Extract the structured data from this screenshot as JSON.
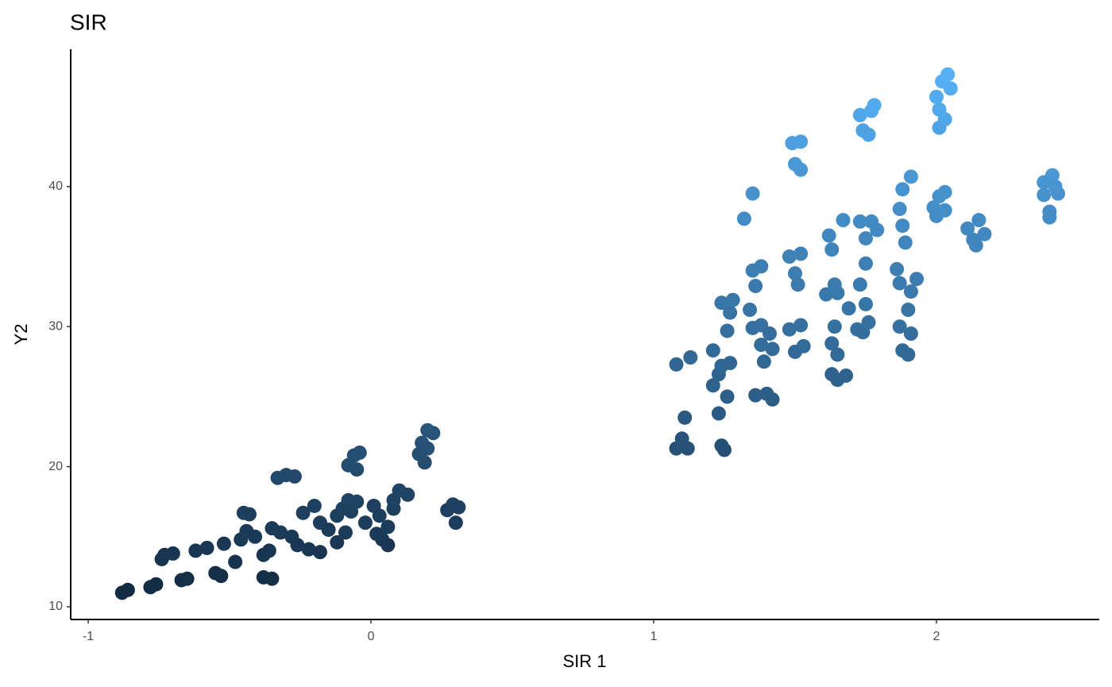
{
  "chart_data": {
    "type": "scatter",
    "title": "SIR",
    "x_label": "SIR 1",
    "y_label": "Y2",
    "x": [
      -0.88,
      -0.86,
      -0.78,
      -0.76,
      -0.74,
      -0.73,
      -0.7,
      -0.67,
      -0.65,
      -0.62,
      -0.58,
      -0.55,
      -0.53,
      -0.52,
      -0.48,
      -0.46,
      -0.45,
      -0.43,
      -0.44,
      -0.41,
      -0.38,
      -0.36,
      -0.38,
      -0.35,
      -0.35,
      -0.32,
      -0.33,
      -0.3,
      -0.27,
      -0.28,
      -0.26,
      -0.24,
      -0.22,
      -0.2,
      -0.18,
      -0.18,
      -0.15,
      -0.12,
      -0.12,
      -0.1,
      -0.09,
      -0.07,
      -0.05,
      -0.08,
      -0.08,
      -0.06,
      -0.04,
      -0.05,
      -0.02,
      0.01,
      0.02,
      0.03,
      0.04,
      0.06,
      0.06,
      0.08,
      0.08,
      0.1,
      0.13,
      0.17,
      0.18,
      0.19,
      0.2,
      0.22,
      0.2,
      0.27,
      0.29,
      0.31,
      0.3,
      1.08,
      1.1,
      1.12,
      1.11,
      1.08,
      1.13,
      1.21,
      1.23,
      1.24,
      1.25,
      1.21,
      1.23,
      1.24,
      1.26,
      1.27,
      1.24,
      1.27,
      1.26,
      1.28,
      1.32,
      1.35,
      1.35,
      1.38,
      1.36,
      1.34,
      1.35,
      1.38,
      1.38,
      1.39,
      1.41,
      1.42,
      1.36,
      1.4,
      1.42,
      1.48,
      1.5,
      1.52,
      1.51,
      1.48,
      1.52,
      1.5,
      1.53,
      1.49,
      1.52,
      1.5,
      1.52,
      1.62,
      1.63,
      1.67,
      1.61,
      1.64,
      1.65,
      1.64,
      1.63,
      1.65,
      1.63,
      1.65,
      1.68,
      1.69,
      1.72,
      1.74,
      1.76,
      1.73,
      1.75,
      1.75,
      1.73,
      1.77,
      1.79,
      1.75,
      1.73,
      1.74,
      1.76,
      1.77,
      1.78,
      1.86,
      1.87,
      1.87,
      1.88,
      1.88,
      1.89,
      1.91,
      1.87,
      1.88,
      1.9,
      1.91,
      1.91,
      1.93,
      1.9,
      1.99,
      2.0,
      2.01,
      2.03,
      2.03,
      2.0,
      2.02,
      2.04,
      2.05,
      2.01,
      2.01,
      2.03,
      2.11,
      2.13,
      2.14,
      2.15,
      2.17,
      2.38,
      2.38,
      2.4,
      2.4,
      2.41,
      2.43,
      2.42
    ],
    "values": [
      11.0,
      11.2,
      11.4,
      11.6,
      13.4,
      13.7,
      13.8,
      11.9,
      12.0,
      14.0,
      14.2,
      12.4,
      12.2,
      14.5,
      13.2,
      14.8,
      16.7,
      16.6,
      15.4,
      15.0,
      13.7,
      14.0,
      12.1,
      12.0,
      15.6,
      15.3,
      19.2,
      19.4,
      19.3,
      15.0,
      14.4,
      16.7,
      14.1,
      17.2,
      16.0,
      13.9,
      15.5,
      16.5,
      14.6,
      17.0,
      15.3,
      16.8,
      17.5,
      17.6,
      20.1,
      20.8,
      21.0,
      19.8,
      16.0,
      17.2,
      15.2,
      16.5,
      14.8,
      14.4,
      15.7,
      17.0,
      17.6,
      18.3,
      18.0,
      20.9,
      21.7,
      20.3,
      22.6,
      22.4,
      21.3,
      16.9,
      17.3,
      17.1,
      16.0,
      21.3,
      22.0,
      21.3,
      23.5,
      27.3,
      27.8,
      28.3,
      23.8,
      21.5,
      21.2,
      25.8,
      26.6,
      27.2,
      25.0,
      27.4,
      31.7,
      31.0,
      29.7,
      31.9,
      37.7,
      39.5,
      34.0,
      34.3,
      32.9,
      31.2,
      29.9,
      30.1,
      28.7,
      27.5,
      29.5,
      28.4,
      25.1,
      25.2,
      24.8,
      35.0,
      33.8,
      35.2,
      33.0,
      29.8,
      30.1,
      28.2,
      28.6,
      43.1,
      43.2,
      41.6,
      41.2,
      36.5,
      35.5,
      37.6,
      32.3,
      33.0,
      32.4,
      30.0,
      28.8,
      28.0,
      26.6,
      26.2,
      26.5,
      31.3,
      29.8,
      29.6,
      30.3,
      33.0,
      34.5,
      36.3,
      37.5,
      37.5,
      36.9,
      31.6,
      45.1,
      44.0,
      43.7,
      45.4,
      45.8,
      34.1,
      33.1,
      38.4,
      39.8,
      37.2,
      36.0,
      40.7,
      30.0,
      28.3,
      28.0,
      29.5,
      32.5,
      33.4,
      31.2,
      38.5,
      37.9,
      39.3,
      39.6,
      38.3,
      46.4,
      47.5,
      48.0,
      47.0,
      45.5,
      44.2,
      44.8,
      37.0,
      36.2,
      35.8,
      37.6,
      36.6,
      40.3,
      39.4,
      38.2,
      37.8,
      40.8,
      39.5,
      40.0
    ],
    "color_scale": [
      "#132B43",
      "#56B1F7"
    ],
    "xlim": [
      -1.062,
      2.576
    ],
    "ylim": [
      9.09,
      49.8
    ],
    "xticks": [
      -1,
      0,
      1,
      2
    ],
    "yticks": [
      10,
      20,
      30,
      40
    ],
    "grid": false
  }
}
